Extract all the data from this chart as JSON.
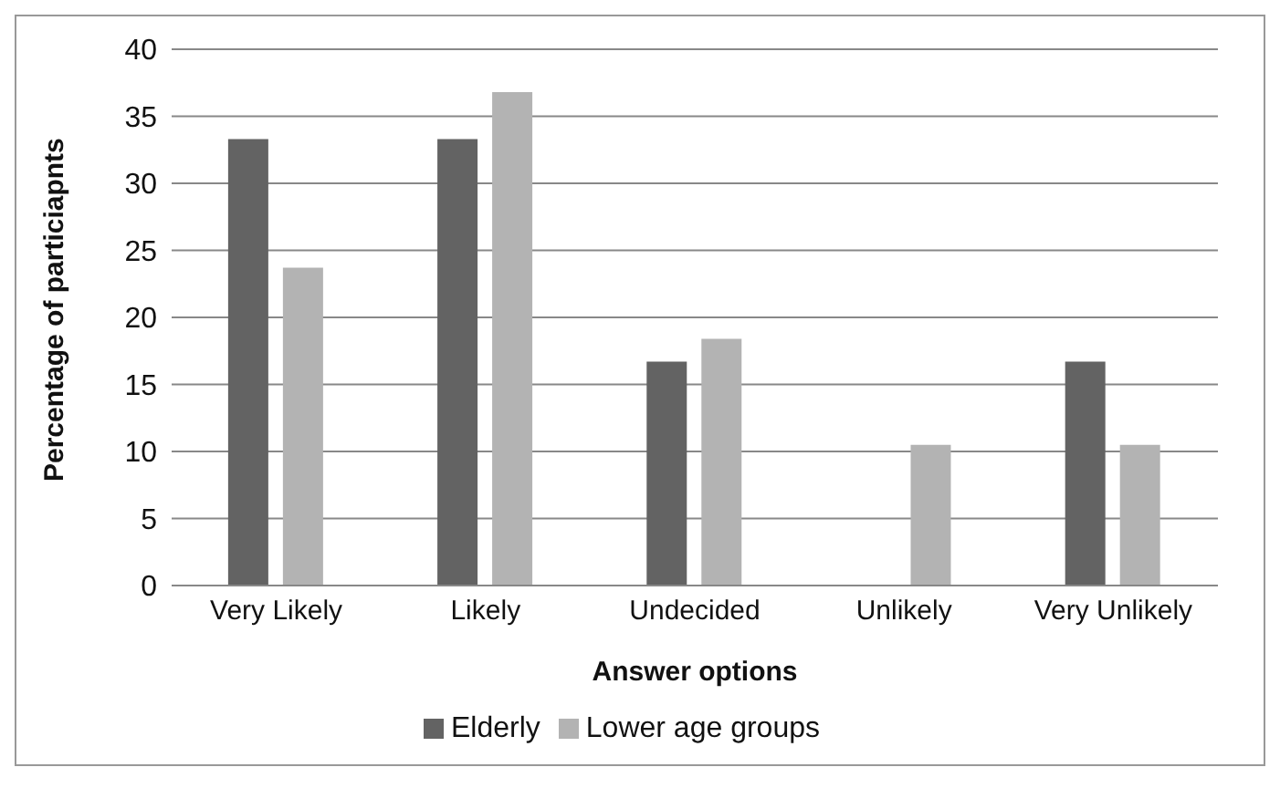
{
  "chart_data": {
    "type": "bar",
    "xlabel": "Answer options",
    "ylabel": "Percentage of particiapnts",
    "categories": [
      "Very Likely",
      "Likely",
      "Undecided",
      "Unlikely",
      "Very Unlikely"
    ],
    "series": [
      {
        "name": "Elderly",
        "color": "#636363",
        "values": [
          33.3,
          33.3,
          16.7,
          0,
          16.7
        ]
      },
      {
        "name": "Lower age groups",
        "color": "#b3b3b3",
        "values": [
          23.7,
          36.8,
          18.4,
          10.5,
          10.5
        ]
      }
    ],
    "ylim": [
      0,
      40
    ],
    "yticks": [
      0,
      5,
      10,
      15,
      20,
      25,
      30,
      35,
      40
    ],
    "grid": "y",
    "legend": "bottom"
  }
}
